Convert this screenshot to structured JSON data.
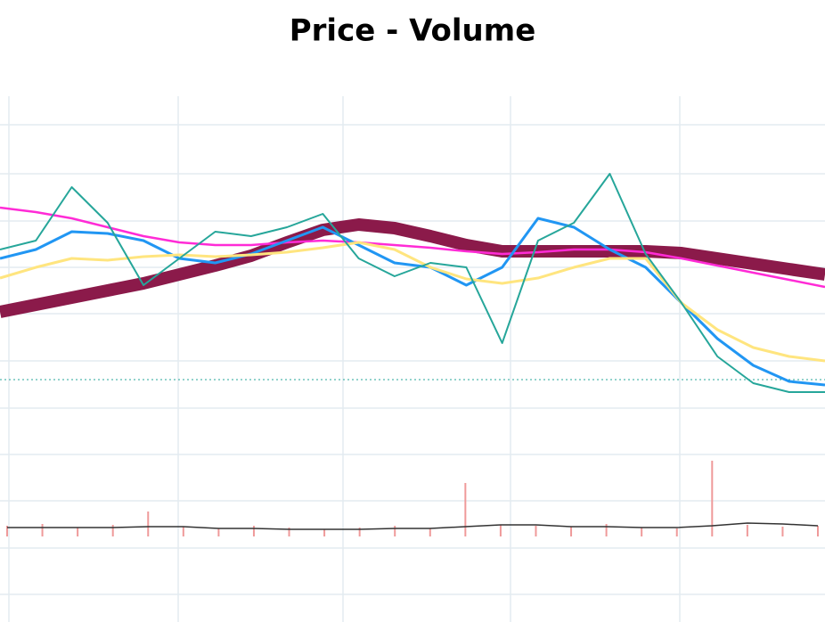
{
  "chart_data": [
    {
      "type": "line",
      "title": "Price - Volume",
      "categories": [
        null,
        null,
        null,
        null,
        null,
        null,
        null,
        null,
        null,
        null,
        null,
        null,
        null,
        null,
        null,
        null,
        null,
        null,
        null,
        null,
        null,
        null,
        null,
        null
      ],
      "ylim": [
        0,
        590
      ],
      "series": [
        {
          "color": "#8b1a4a",
          "values": [
            348,
            356,
            364,
            372,
            380,
            390,
            400,
            411,
            426,
            440,
            446,
            442,
            433,
            423,
            416,
            416,
            416,
            416,
            416,
            414,
            408,
            402,
            396,
            390
          ]
        },
        {
          "color": "#ff2bd6",
          "values": [
            465,
            460,
            453,
            443,
            433,
            426,
            423,
            423,
            426,
            428,
            426,
            423,
            420,
            416,
            413,
            415,
            418,
            418,
            415,
            408,
            400,
            392,
            384,
            376
          ]
        },
        {
          "color": "#2196f3",
          "values": [
            408,
            418,
            438,
            436,
            428,
            408,
            403,
            413,
            428,
            443,
            423,
            403,
            398,
            378,
            398,
            453,
            443,
            418,
            398,
            358,
            318,
            288,
            270,
            266
          ]
        },
        {
          "color": "#ffe57f",
          "values": [
            386,
            398,
            408,
            406,
            410,
            412,
            410,
            412,
            415,
            420,
            426,
            418,
            398,
            385,
            380,
            386,
            398,
            408,
            408,
            358,
            328,
            308,
            298,
            293
          ]
        },
        {
          "color": "#26a69a",
          "values": [
            418,
            428,
            488,
            448,
            378,
            408,
            438,
            433,
            443,
            458,
            408,
            388,
            403,
            398,
            313,
            428,
            448,
            503,
            413,
            358,
            298,
            268,
            258,
            258
          ]
        }
      ]
    },
    {
      "type": "bar",
      "categories": [
        null,
        null,
        null,
        null,
        null,
        null,
        null,
        null,
        null,
        null,
        null,
        null,
        null,
        null,
        null,
        null,
        null,
        null,
        null,
        null,
        null,
        null,
        null,
        null
      ],
      "ylim": [
        0,
        100
      ],
      "values": [
        12,
        14,
        10,
        13,
        28,
        11,
        9,
        12,
        10,
        8,
        10,
        12,
        9,
        60,
        13,
        12,
        11,
        14,
        10,
        9,
        85,
        13,
        11,
        12
      ],
      "color": "#ef9a9a",
      "series": [
        {
          "color": "#333333",
          "values": [
            10,
            10,
            10,
            10,
            11,
            11,
            9,
            9,
            8,
            8,
            8,
            9,
            9,
            11,
            13,
            13,
            11,
            11,
            10,
            10,
            12,
            15,
            14,
            12
          ]
        }
      ]
    }
  ]
}
